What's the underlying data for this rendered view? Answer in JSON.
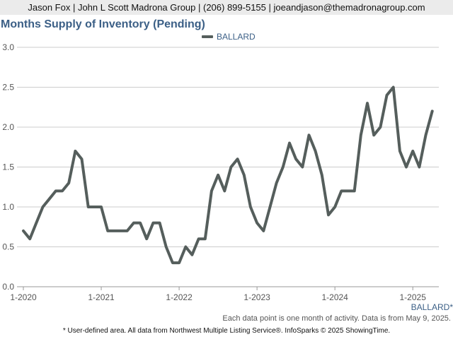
{
  "header": {
    "contact": "Jason Fox | John L Scott Madrona Group | (206) 899-5155 | joeandjason@themadronagroup.com"
  },
  "colors": {
    "line": "#555e5c",
    "title": "#3b5f86",
    "grid": "#cccccc",
    "header_bg": "#ebebeb"
  },
  "chart_data": {
    "type": "line",
    "title": "Months Supply of Inventory (Pending)",
    "xlabel": "",
    "ylabel": "",
    "ylim": [
      0,
      3.0
    ],
    "yticks": [
      0.0,
      0.5,
      1.0,
      1.5,
      2.0,
      2.5,
      3.0
    ],
    "ytick_labels": [
      "0.0",
      "0.5",
      "1.0",
      "1.5",
      "2.0",
      "2.5",
      "3.0"
    ],
    "xticks": [
      {
        "label": "1-2020",
        "index": 0
      },
      {
        "label": "1-2021",
        "index": 12
      },
      {
        "label": "1-2022",
        "index": 24
      },
      {
        "label": "1-2023",
        "index": 36
      },
      {
        "label": "1-2024",
        "index": 48
      },
      {
        "label": "1-2025",
        "index": 60
      }
    ],
    "grid": true,
    "legend_position": "top-center",
    "series": [
      {
        "name": "BALLARD",
        "values": [
          0.7,
          0.6,
          0.8,
          1.0,
          1.1,
          1.2,
          1.2,
          1.3,
          1.7,
          1.6,
          1.0,
          1.0,
          1.0,
          0.7,
          0.7,
          0.7,
          0.7,
          0.8,
          0.8,
          0.6,
          0.8,
          0.8,
          0.5,
          0.3,
          0.3,
          0.5,
          0.4,
          0.6,
          0.6,
          1.2,
          1.4,
          1.2,
          1.5,
          1.6,
          1.4,
          1.0,
          0.8,
          0.7,
          1.0,
          1.3,
          1.5,
          1.8,
          1.6,
          1.5,
          1.9,
          1.7,
          1.4,
          0.9,
          1.0,
          1.2,
          1.2,
          1.2,
          1.9,
          2.3,
          1.9,
          2.0,
          2.4,
          2.5,
          1.7,
          1.5,
          1.7,
          1.5,
          1.9,
          2.2
        ]
      }
    ]
  },
  "area_label": "BALLARD*",
  "note": "Each data point is one month of activity. Data is from May 9, 2025.",
  "footer": "* User-defined area. All data from Northwest Multiple Listing Service®. InfoSparks © 2025 ShowingTime."
}
